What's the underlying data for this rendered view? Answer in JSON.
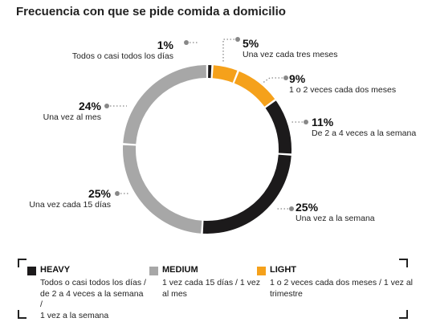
{
  "chart_data": {
    "type": "pie",
    "title": "Frecuencia con que se pide comida a domicilio",
    "slices": [
      {
        "label": "Todos o casi todos los días",
        "value": 1,
        "pct_label": "1%",
        "segment": "heavy"
      },
      {
        "label": "Una vez cada tres meses",
        "value": 5,
        "pct_label": "5%",
        "segment": "light"
      },
      {
        "label": "1 o 2 veces cada dos meses",
        "value": 9,
        "pct_label": "9%",
        "segment": "light"
      },
      {
        "label": "De 2 a 4 veces a la semana",
        "value": 11,
        "pct_label": "11%",
        "segment": "heavy"
      },
      {
        "label": "Una vez a la semana",
        "value": 25,
        "pct_label": "25%",
        "segment": "heavy"
      },
      {
        "label": "Una vez cada 15 días",
        "value": 25,
        "pct_label": "25%",
        "segment": "medium"
      },
      {
        "label": "Una vez al mes",
        "value": 24,
        "pct_label": "24%",
        "segment": "medium"
      }
    ],
    "colors": {
      "heavy": "#1c1a1b",
      "medium": "#a7a7a7",
      "light": "#f5a11b"
    },
    "legend": [
      {
        "name": "HEAVY",
        "color": "#1c1a1b",
        "lines": [
          "Todos o casi todos los días /",
          "de 2 a 4 veces a la semana /",
          "1 vez a la semana"
        ]
      },
      {
        "name": "MEDIUM",
        "color": "#a7a7a7",
        "lines": [
          "1 vez cada 15 días / 1 vez",
          "al mes"
        ]
      },
      {
        "name": "LIGHT",
        "color": "#f5a11b",
        "lines": [
          "1 o 2 veces cada dos meses / 1 vez al",
          "trimestre"
        ]
      }
    ]
  }
}
